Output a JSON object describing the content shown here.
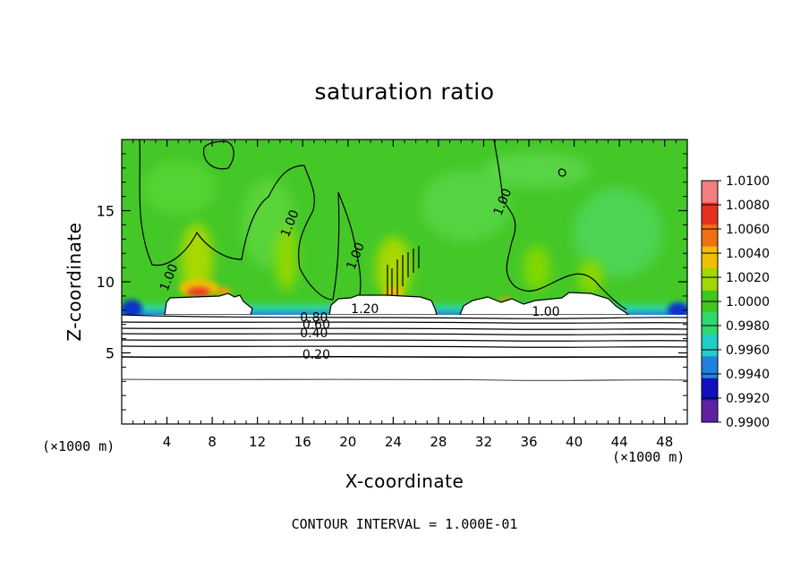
{
  "chart_data": {
    "type": "heatmap",
    "title": "saturation ratio",
    "xlabel": "X-coordinate",
    "ylabel": "Z-coordinate",
    "x_unit_label": "(×1000 m)",
    "xlim": [
      0,
      50
    ],
    "ylim": [
      0,
      20
    ],
    "x_ticks": [
      4,
      8,
      12,
      16,
      20,
      24,
      28,
      32,
      36,
      40,
      44,
      48
    ],
    "y_ticks": [
      5,
      10,
      15
    ],
    "colorbar": {
      "levels": [
        "1.0100",
        "1.0080",
        "1.0060",
        "1.0040",
        "1.0020",
        "1.0000",
        "0.9980",
        "0.9960",
        "0.9940",
        "0.9920",
        "0.9900"
      ],
      "colors": [
        "#f08080",
        "#e83020",
        "#f07010",
        "#f0c000",
        "#a0d800",
        "#40c820",
        "#30d870",
        "#20d0c8",
        "#2080e0",
        "#1010c0",
        "#6020a0"
      ]
    },
    "contour_labels": [
      {
        "text": "1.00",
        "x": 4.5,
        "y": 10.2
      },
      {
        "text": "1.00",
        "x": 15.2,
        "y": 14.0
      },
      {
        "text": "1.00",
        "x": 21.0,
        "y": 11.7
      },
      {
        "text": "1.00",
        "x": 34.0,
        "y": 15.5
      },
      {
        "text": "1.00",
        "x": 37.5,
        "y": 7.6
      },
      {
        "text": "1.20",
        "x": 21.5,
        "y": 7.8
      },
      {
        "text": "0.80",
        "x": 17.0,
        "y": 7.2
      },
      {
        "text": "0.60",
        "x": 17.2,
        "y": 6.7
      },
      {
        "text": "0.40",
        "x": 17.0,
        "y": 6.1
      },
      {
        "text": "0.20",
        "x": 17.2,
        "y": 4.6
      }
    ],
    "contour_interval_text": "CONTOUR INTERVAL =  1.000E-01"
  }
}
